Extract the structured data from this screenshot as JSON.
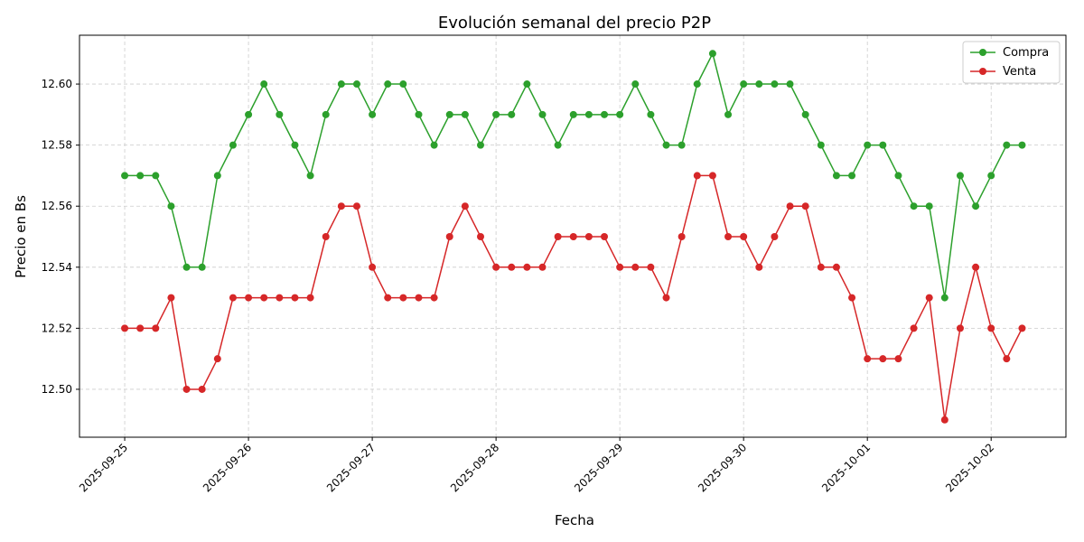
{
  "chart_data": {
    "type": "line",
    "title": "Evolución semanal del precio P2P",
    "x_label": "Fecha",
    "y_label": "Precio en Bs",
    "x": [
      "2025-09-25 00:00",
      "2025-09-25 03:00",
      "2025-09-25 06:00",
      "2025-09-25 09:00",
      "2025-09-25 12:00",
      "2025-09-25 15:00",
      "2025-09-25 18:00",
      "2025-09-25 21:00",
      "2025-09-26 00:00",
      "2025-09-26 03:00",
      "2025-09-26 06:00",
      "2025-09-26 09:00",
      "2025-09-26 12:00",
      "2025-09-26 15:00",
      "2025-09-26 18:00",
      "2025-09-26 21:00",
      "2025-09-27 00:00",
      "2025-09-27 03:00",
      "2025-09-27 06:00",
      "2025-09-27 09:00",
      "2025-09-27 12:00",
      "2025-09-27 15:00",
      "2025-09-27 18:00",
      "2025-09-27 21:00",
      "2025-09-28 00:00",
      "2025-09-28 03:00",
      "2025-09-28 06:00",
      "2025-09-28 09:00",
      "2025-09-28 12:00",
      "2025-09-28 15:00",
      "2025-09-28 18:00",
      "2025-09-28 21:00",
      "2025-09-29 00:00",
      "2025-09-29 03:00",
      "2025-09-29 06:00",
      "2025-09-29 09:00",
      "2025-09-29 12:00",
      "2025-09-29 15:00",
      "2025-09-29 18:00",
      "2025-09-29 21:00",
      "2025-09-30 00:00",
      "2025-09-30 03:00",
      "2025-09-30 06:00",
      "2025-09-30 09:00",
      "2025-09-30 12:00",
      "2025-09-30 15:00",
      "2025-09-30 18:00",
      "2025-09-30 21:00",
      "2025-10-01 00:00",
      "2025-10-01 03:00",
      "2025-10-01 06:00",
      "2025-10-01 09:00",
      "2025-10-01 12:00",
      "2025-10-01 15:00",
      "2025-10-01 18:00",
      "2025-10-01 21:00",
      "2025-10-02 00:00",
      "2025-10-02 03:00",
      "2025-10-02 06:00"
    ],
    "series": [
      {
        "name": "Compra",
        "color": "#2ca02c",
        "values": [
          12.57,
          12.57,
          12.57,
          12.56,
          12.54,
          12.54,
          12.57,
          12.58,
          12.59,
          12.6,
          12.59,
          12.58,
          12.57,
          12.59,
          12.6,
          12.6,
          12.59,
          12.6,
          12.6,
          12.59,
          12.58,
          12.59,
          12.59,
          12.58,
          12.59,
          12.59,
          12.6,
          12.59,
          12.58,
          12.59,
          12.59,
          12.59,
          12.59,
          12.6,
          12.59,
          12.58,
          12.58,
          12.6,
          12.61,
          12.59,
          12.6,
          12.6,
          12.6,
          12.6,
          12.59,
          12.58,
          12.57,
          12.57,
          12.58,
          12.58,
          12.57,
          12.56,
          12.56,
          12.53,
          12.57,
          12.56,
          12.57,
          12.58,
          12.58
        ]
      },
      {
        "name": "Venta",
        "color": "#d62728",
        "values": [
          12.52,
          12.52,
          12.52,
          12.53,
          12.5,
          12.5,
          12.51,
          12.53,
          12.53,
          12.53,
          12.53,
          12.53,
          12.53,
          12.55,
          12.56,
          12.56,
          12.54,
          12.53,
          12.53,
          12.53,
          12.53,
          12.55,
          12.56,
          12.55,
          12.54,
          12.54,
          12.54,
          12.54,
          12.55,
          12.55,
          12.55,
          12.55,
          12.54,
          12.54,
          12.54,
          12.53,
          12.55,
          12.57,
          12.57,
          12.55,
          12.55,
          12.54,
          12.55,
          12.56,
          12.56,
          12.54,
          12.54,
          12.53,
          12.51,
          12.51,
          12.51,
          12.52,
          12.53,
          12.49,
          12.52,
          12.54,
          12.52,
          12.51,
          12.52
        ]
      }
    ],
    "xlim": [
      "2025-09-24 15:14",
      "2025-10-02 14:30"
    ],
    "xticks": [
      "2025-09-25",
      "2025-09-26",
      "2025-09-27",
      "2025-09-28",
      "2025-09-29",
      "2025-09-30",
      "2025-10-01",
      "2025-10-02"
    ],
    "ylim": [
      12.4843,
      12.616
    ],
    "yticks": [
      {
        "value": 12.5,
        "label": "12.50"
      },
      {
        "value": 12.52,
        "label": "12.52"
      },
      {
        "value": 12.54,
        "label": "12.54"
      },
      {
        "value": 12.56,
        "label": "12.56"
      },
      {
        "value": 12.58,
        "label": "12.58"
      },
      {
        "value": 12.6,
        "label": "12.60"
      }
    ],
    "grid": true,
    "legend": "upper right"
  }
}
